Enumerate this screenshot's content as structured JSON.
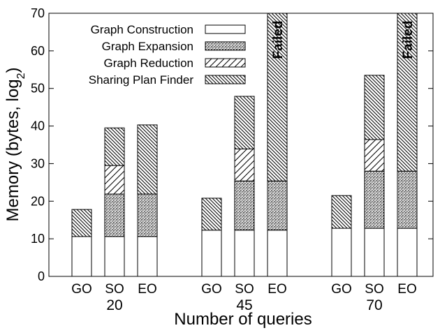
{
  "chart_data": {
    "type": "bar",
    "stacked": true,
    "xlabel": "Number of queries",
    "ylabel": "Memory (bytes, log",
    "ylabel_sub": "2",
    "ylabel_end": ")",
    "ylim": [
      0,
      70
    ],
    "yticks": [
      0,
      10,
      20,
      30,
      40,
      50,
      60,
      70
    ],
    "grid": false,
    "legend_position": "top-left",
    "series": [
      {
        "name": "Graph Construction",
        "pattern": "none"
      },
      {
        "name": "Graph Expansion",
        "pattern": "dots"
      },
      {
        "name": "Graph Reduction",
        "pattern": "hatch-sparse"
      },
      {
        "name": "Sharing Plan Finder",
        "pattern": "hatch-dense"
      }
    ],
    "groups": [
      {
        "label": "20",
        "bars": [
          {
            "label": "GO",
            "segments": [
              10.6,
              0,
              0,
              7.2
            ]
          },
          {
            "label": "SO",
            "segments": [
              10.6,
              11.3,
              7.6,
              10.0
            ]
          },
          {
            "label": "EO",
            "segments": [
              10.6,
              11.3,
              0,
              18.4
            ]
          }
        ]
      },
      {
        "label": "45",
        "bars": [
          {
            "label": "GO",
            "segments": [
              12.3,
              0,
              0,
              8.5
            ]
          },
          {
            "label": "SO",
            "segments": [
              12.3,
              13.1,
              8.5,
              14.0
            ]
          },
          {
            "label": "EO",
            "segments": [
              12.3,
              13.1,
              0,
              44.6
            ],
            "annotation": "Failed"
          }
        ]
      },
      {
        "label": "70",
        "bars": [
          {
            "label": "GO",
            "segments": [
              12.8,
              0,
              0,
              8.7
            ]
          },
          {
            "label": "SO",
            "segments": [
              12.8,
              15.2,
              8.4,
              17.1
            ]
          },
          {
            "label": "EO",
            "segments": [
              12.8,
              15.2,
              0,
              42.0
            ],
            "annotation": "Failed"
          }
        ]
      }
    ]
  }
}
